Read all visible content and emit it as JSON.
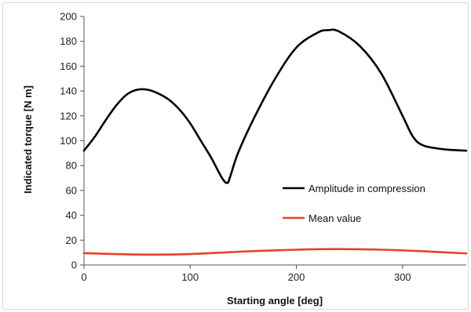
{
  "chart_data": {
    "type": "line",
    "title": "",
    "xlabel": "Starting angle [deg]",
    "ylabel": "Indicated torque [N m]",
    "xlim": [
      0,
      360
    ],
    "ylim": [
      0,
      200
    ],
    "x_ticks": [
      "0",
      "100",
      "200",
      "300"
    ],
    "y_ticks": [
      "0",
      "20",
      "40",
      "60",
      "80",
      "100",
      "120",
      "140",
      "160",
      "180",
      "200"
    ],
    "grid": false,
    "legend_position": "center-right",
    "series": [
      {
        "name": "Amplitude in compression",
        "color": "#000000",
        "x": [
          0,
          10,
          20,
          30,
          40,
          50,
          60,
          70,
          80,
          90,
          100,
          110,
          120,
          130,
          135,
          138,
          145,
          160,
          180,
          200,
          220,
          230,
          240,
          260,
          280,
          300,
          310,
          320,
          340,
          360
        ],
        "y": [
          92,
          103,
          116,
          128,
          137,
          141,
          141,
          138,
          133,
          125,
          114,
          100,
          86,
          70,
          66,
          72,
          90,
          118,
          150,
          175,
          187,
          189,
          188,
          176,
          154,
          120,
          103,
          96,
          93,
          92
        ]
      },
      {
        "name": "Mean value",
        "color": "#e8402a",
        "x": [
          0,
          30,
          60,
          100,
          150,
          200,
          240,
          280,
          320,
          360
        ],
        "y": [
          9.5,
          8.8,
          8.3,
          8.8,
          10.8,
          12.3,
          12.8,
          12.3,
          11.0,
          9.3
        ]
      }
    ]
  }
}
